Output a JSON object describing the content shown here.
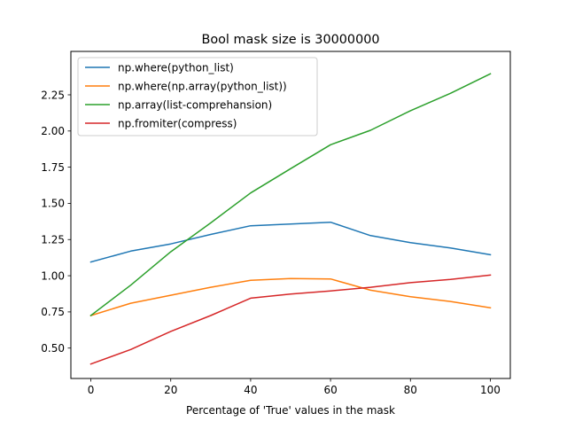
{
  "chart_data": {
    "type": "line",
    "title": "Bool mask size is 30000000",
    "xlabel": "Percentage of 'True' values in the mask",
    "ylabel": "",
    "xlim": [
      -5,
      105
    ],
    "ylim": [
      0.29,
      2.55
    ],
    "x_ticks": [
      0,
      20,
      40,
      60,
      80,
      100
    ],
    "y_ticks": [
      0.5,
      0.75,
      1.0,
      1.25,
      1.5,
      1.75,
      2.0,
      2.25
    ],
    "grid": false,
    "legend_position": "upper-left",
    "x": [
      0,
      10,
      20,
      30,
      40,
      50,
      60,
      70,
      80,
      90,
      100
    ],
    "series": [
      {
        "name": "np.where(python_list)",
        "color": "#1f77b4",
        "values": [
          1.095,
          1.17,
          1.22,
          1.285,
          1.345,
          1.357,
          1.37,
          1.277,
          1.228,
          1.192,
          1.145
        ]
      },
      {
        "name": "np.where(np.array(python_list))",
        "color": "#ff7f0e",
        "values": [
          0.725,
          0.81,
          0.865,
          0.92,
          0.968,
          0.98,
          0.978,
          0.9,
          0.855,
          0.822,
          0.778
        ]
      },
      {
        "name": "np.array(list-comprehansion)",
        "color": "#2ca02c",
        "values": [
          0.725,
          0.935,
          1.165,
          1.365,
          1.572,
          1.74,
          1.905,
          2.005,
          2.14,
          2.26,
          2.395
        ]
      },
      {
        "name": "np.fromiter(compress)",
        "color": "#d62728",
        "values": [
          0.39,
          0.49,
          0.615,
          0.725,
          0.845,
          0.873,
          0.895,
          0.92,
          0.952,
          0.975,
          1.005
        ]
      }
    ]
  }
}
